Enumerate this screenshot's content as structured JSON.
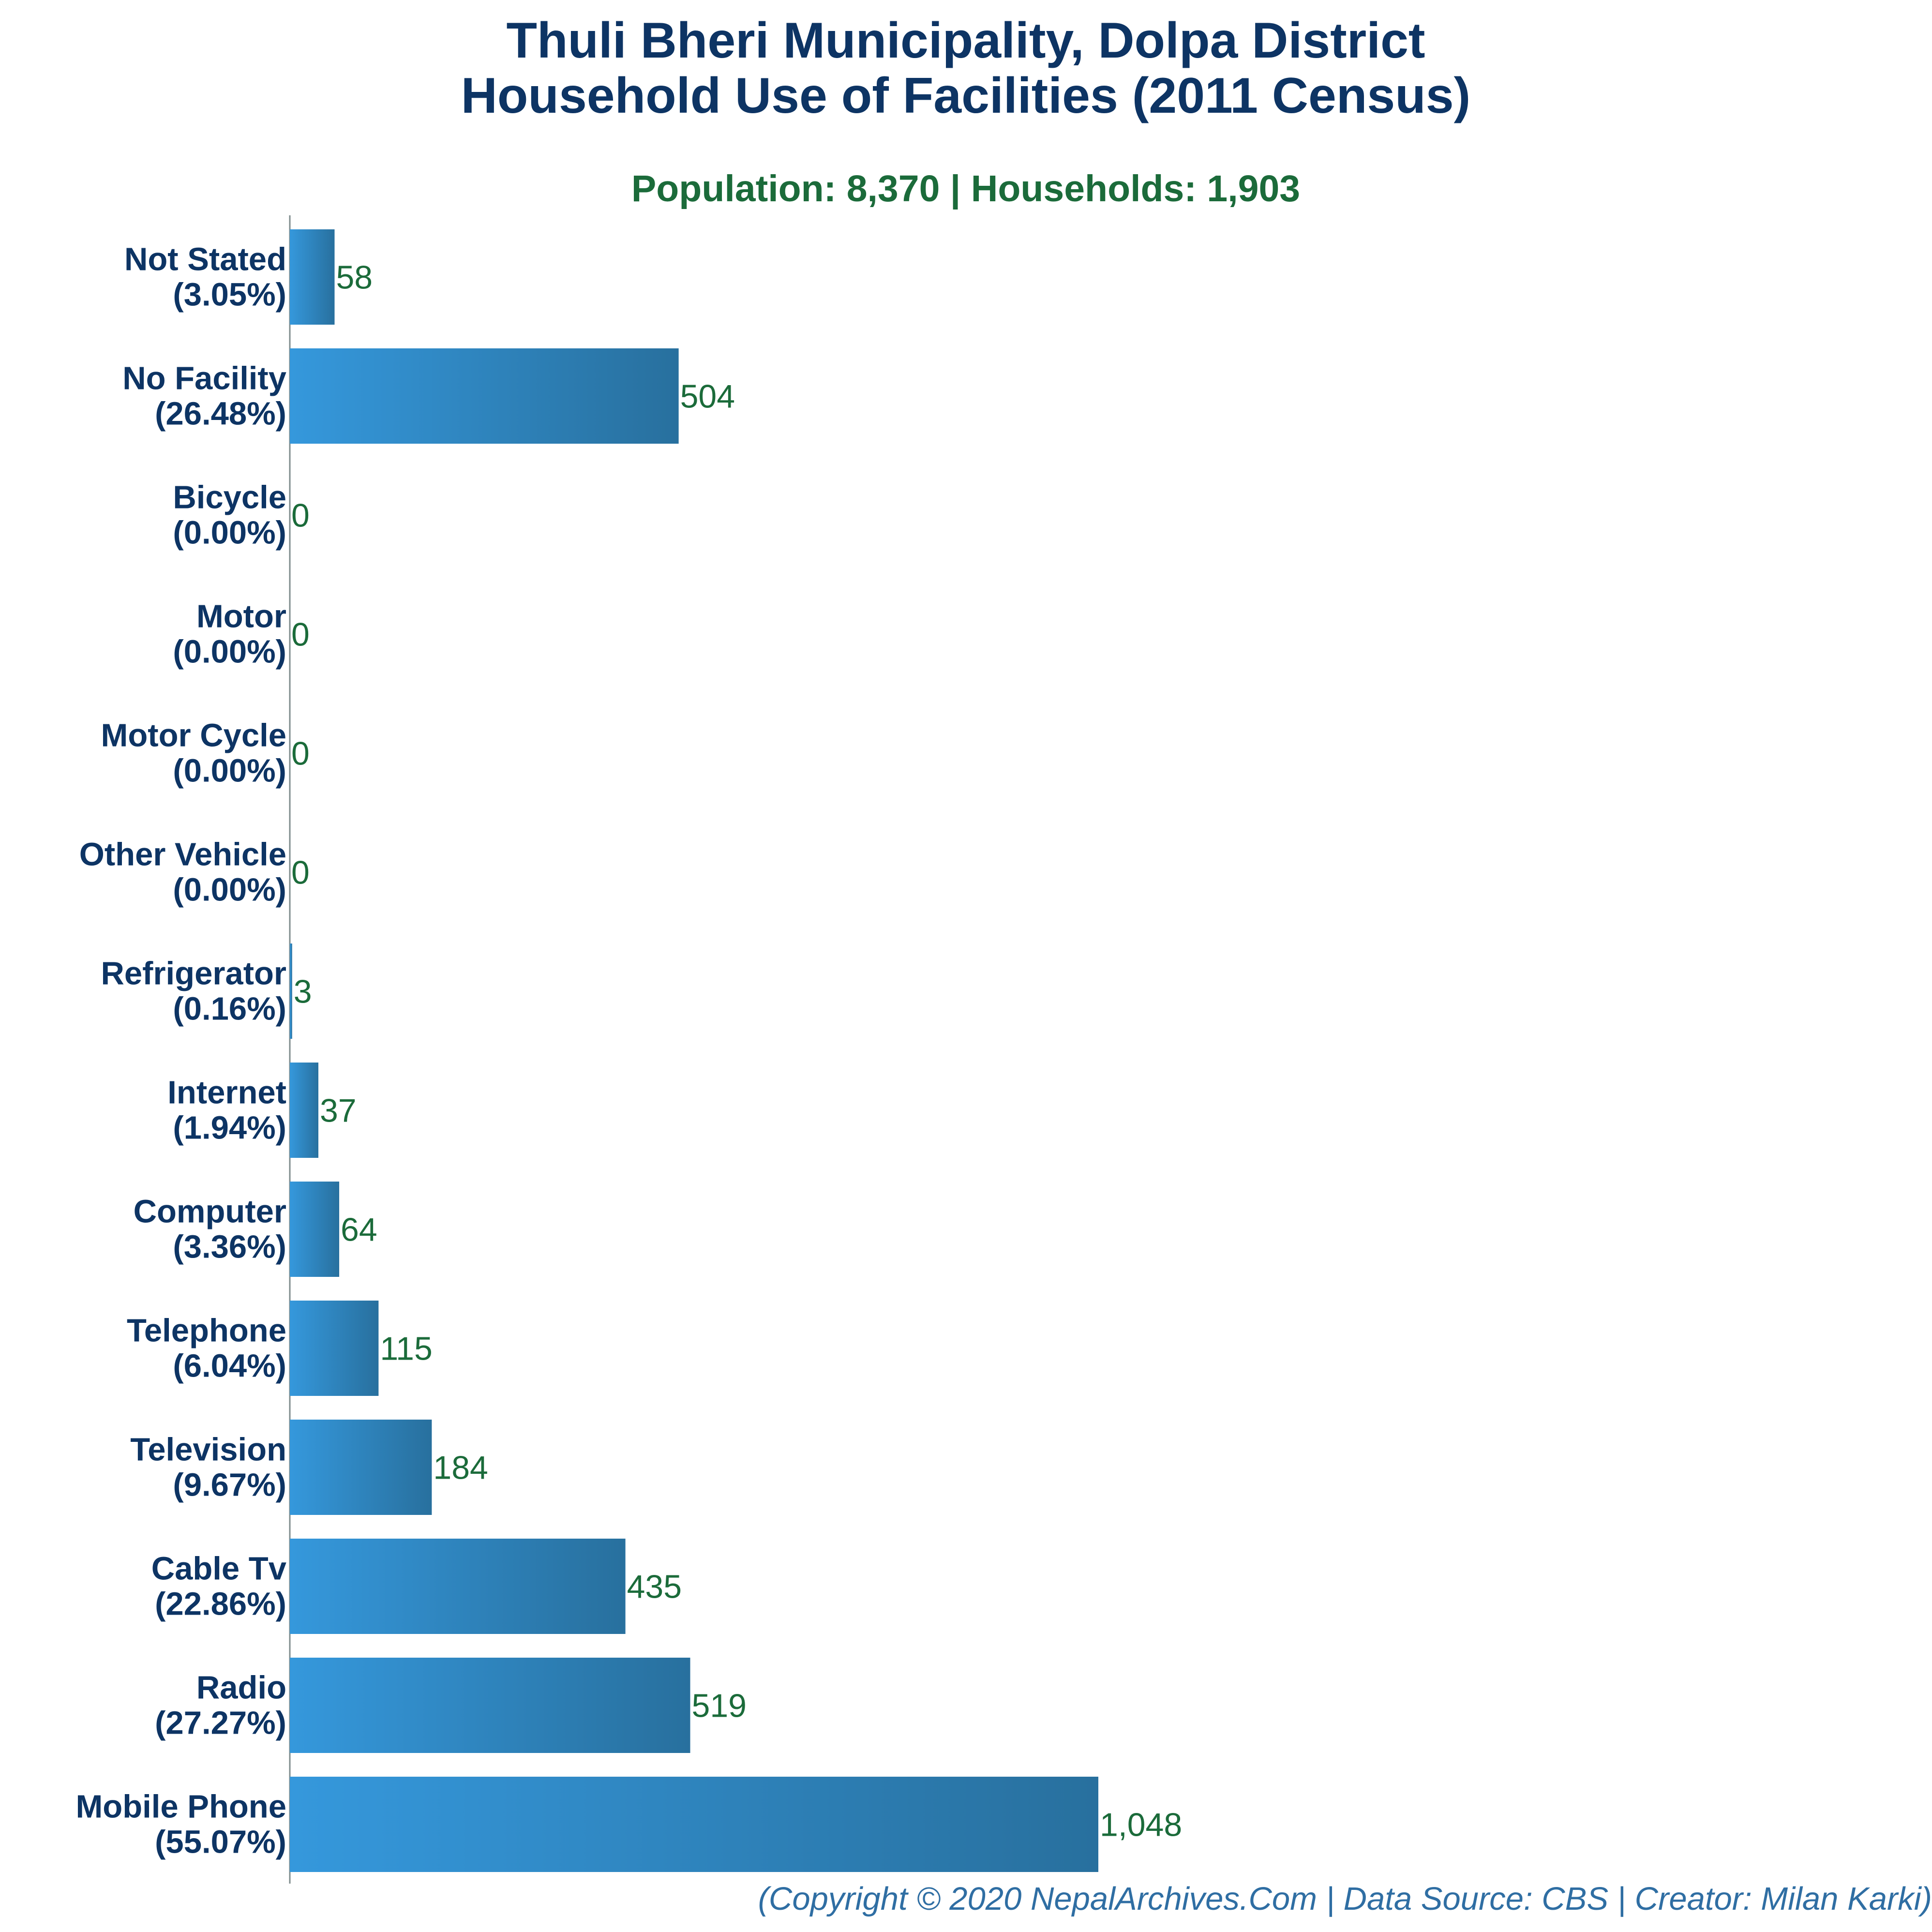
{
  "header": {
    "title_line1": "Thuli Bheri Municipality, Dolpa District",
    "title_line2": "Household Use of Facilities (2011 Census)",
    "subtitle": "Population: 8,370 | Households: 1,903"
  },
  "footer": {
    "credit": "(Copyright © 2020 NepalArchives.Com | Data Source: CBS | Creator: Milan Karki)"
  },
  "colors": {
    "title": "#0d3464",
    "subtitle": "#1b6b3a",
    "category_label": "#0d3464",
    "value_label": "#1b6b3a",
    "footer": "#2f6ea3",
    "bar_gradient_start": "#3598dc",
    "bar_gradient_end": "#28709e",
    "axis": "#7f8c8d"
  },
  "chart_data": {
    "type": "bar",
    "orientation": "horizontal",
    "title": "Thuli Bheri Municipality, Dolpa District Household Use of Facilities (2011 Census)",
    "subtitle": "Population: 8,370 | Households: 1,903",
    "xlabel": "",
    "ylabel": "",
    "xlim": [
      0,
      1130
    ],
    "grid": false,
    "legend": "none",
    "categories": [
      {
        "name": "Not Stated",
        "pct": "(3.05%)"
      },
      {
        "name": "No Facility",
        "pct": "(26.48%)"
      },
      {
        "name": "Bicycle",
        "pct": "(0.00%)"
      },
      {
        "name": "Motor",
        "pct": "(0.00%)"
      },
      {
        "name": "Motor Cycle",
        "pct": "(0.00%)"
      },
      {
        "name": "Other Vehicle",
        "pct": "(0.00%)"
      },
      {
        "name": "Refrigerator",
        "pct": "(0.16%)"
      },
      {
        "name": "Internet",
        "pct": "(1.94%)"
      },
      {
        "name": "Computer",
        "pct": "(3.36%)"
      },
      {
        "name": "Telephone",
        "pct": "(6.04%)"
      },
      {
        "name": "Television",
        "pct": "(9.67%)"
      },
      {
        "name": "Cable Tv",
        "pct": "(22.86%)"
      },
      {
        "name": "Radio",
        "pct": "(27.27%)"
      },
      {
        "name": "Mobile Phone",
        "pct": "(55.07%)"
      }
    ],
    "values": [
      58,
      504,
      0,
      0,
      0,
      0,
      3,
      37,
      64,
      115,
      184,
      435,
      519,
      1048
    ],
    "value_labels": [
      "58",
      "504",
      "0",
      "0",
      "0",
      "0",
      "3",
      "37",
      "64",
      "115",
      "184",
      "435",
      "519",
      "1,048"
    ]
  }
}
